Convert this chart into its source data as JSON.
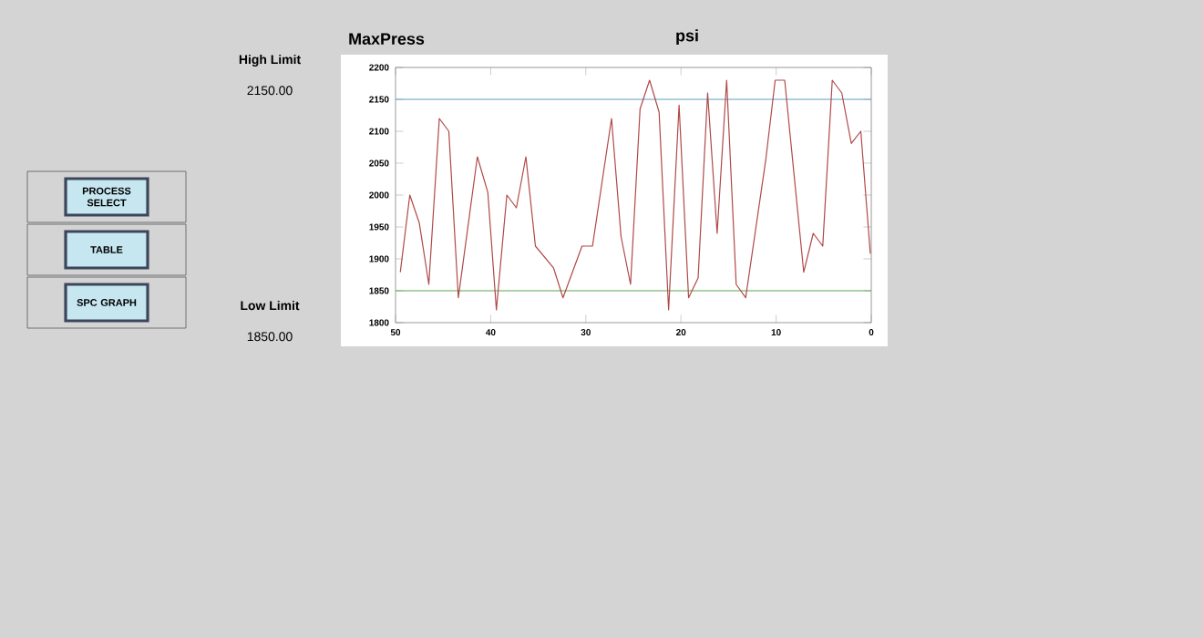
{
  "chart_data": {
    "type": "line",
    "title": "MaxPress",
    "subtitle": "psi",
    "color": "#b04848",
    "line_style": "solid",
    "marker": "none",
    "grid": false,
    "x": [
      49.5,
      48.5,
      47.5,
      46.5,
      45.4,
      44.4,
      43.4,
      41.4,
      40.3,
      39.4,
      38.3,
      37.3,
      36.3,
      35.3,
      33.4,
      32.4,
      30.4,
      29.3,
      27.3,
      26.3,
      25.3,
      24.3,
      23.3,
      22.3,
      21.3,
      20.2,
      19.2,
      18.2,
      17.2,
      16.2,
      15.2,
      14.2,
      13.2,
      11.1,
      10.1,
      9.1,
      7.1,
      6.1,
      5.1,
      4.1,
      3.1,
      2.1,
      1.1,
      0.1
    ],
    "values": [
      1879,
      2000,
      1956,
      1860,
      2120,
      2100,
      1839,
      2060,
      2004,
      1820,
      2000,
      1980,
      2060,
      1920,
      1886,
      1839,
      1920,
      1920,
      2120,
      1935,
      1860,
      2135,
      2180,
      2130,
      1820,
      2141,
      1839,
      1870,
      2160,
      1940,
      2180,
      1860,
      1839,
      2054,
      2180,
      2180,
      1879,
      1940,
      1920,
      2180,
      2160,
      2081,
      2100,
      1908
    ],
    "xlim": [
      50,
      0
    ],
    "xticks": [
      50,
      40,
      30,
      20,
      10,
      0
    ],
    "ylim": [
      1800,
      2200
    ],
    "yticks": [
      1800,
      1850,
      1900,
      1950,
      2000,
      2050,
      2100,
      2150,
      2200
    ],
    "ref_lines": [
      {
        "axis": "y",
        "value": 2150,
        "color": "#5aa0c8"
      },
      {
        "axis": "y",
        "value": 1850,
        "color": "#58a850"
      }
    ],
    "annotations": [
      "High Limit",
      "2150.00",
      "Low Limit",
      "1850.00",
      "PROCESS SELECT",
      "TABLE",
      "SPC GRAPH"
    ]
  }
}
